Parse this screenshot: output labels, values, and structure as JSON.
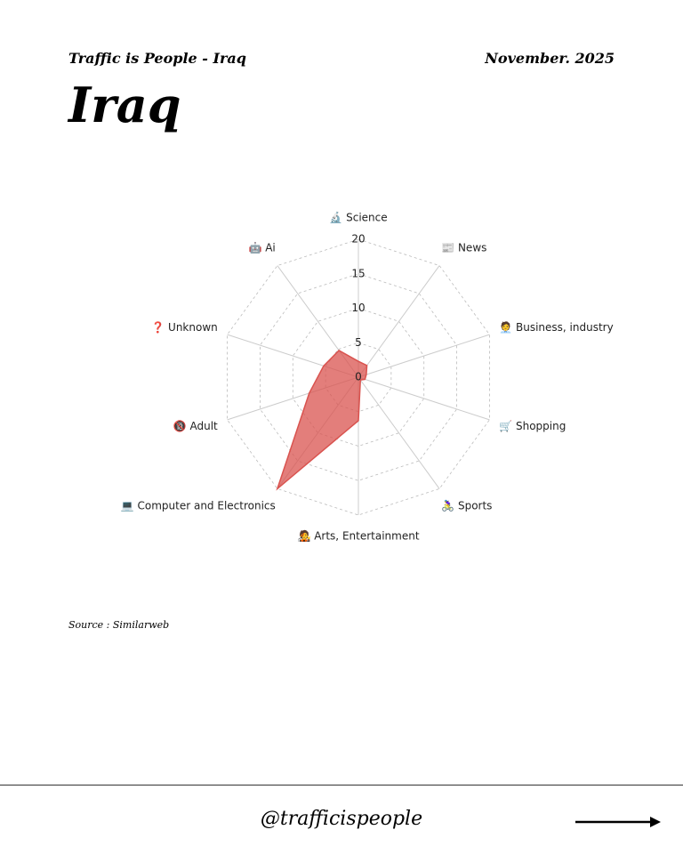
{
  "header": {
    "brand": "Traffic is People - Iraq",
    "date": "November. 2025",
    "title": "Iraq"
  },
  "chart_data": {
    "type": "radar",
    "categories": [
      "🔬 Science",
      "📰 News",
      "🧑‍💼 Business, industry",
      "🛒 Shopping",
      "🚴‍♀️ Sports",
      "🧑‍🎤 Arts, Entertainment",
      "💻 Computer and Electronics",
      "🔞 Adult",
      "❓ Unknown",
      "🤖 Ai"
    ],
    "values": [
      2.3,
      2.1,
      1.2,
      1,
      0.5,
      6.3,
      20,
      7.5,
      5.3,
      4.8
    ],
    "color": "#d9534f",
    "rlim": [
      0,
      20
    ],
    "rticks": [
      0,
      5,
      10,
      15,
      20
    ],
    "grid": true
  },
  "source": "Source : Similarweb",
  "footer": {
    "handle": "@trafficispeople"
  }
}
